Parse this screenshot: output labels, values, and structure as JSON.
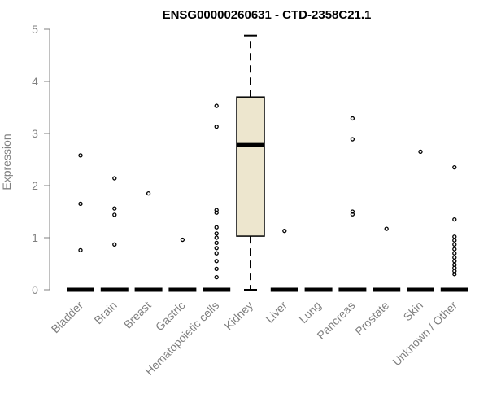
{
  "chart_data": {
    "type": "box",
    "title": "ENSG00000260631 - CTD-2358C21.1",
    "ylabel": "Expression",
    "xlabel": "",
    "ylim": [
      0,
      5
    ],
    "yticks": [
      0,
      1,
      2,
      3,
      4,
      5
    ],
    "grid": false,
    "categories": [
      "Bladder",
      "Brain",
      "Breast",
      "Gastric",
      "Hematopoietic cells",
      "Kidney",
      "Liver",
      "Lung",
      "Pancreas",
      "Prostate",
      "Skin",
      "Unknown / Other"
    ],
    "boxes": [
      {
        "category": "Bladder",
        "min": 0,
        "q1": 0,
        "median": 0,
        "q3": 0,
        "max": 0,
        "outliers": [
          0.76,
          1.65,
          2.58
        ]
      },
      {
        "category": "Brain",
        "min": 0,
        "q1": 0,
        "median": 0,
        "q3": 0,
        "max": 0,
        "outliers": [
          0.87,
          1.44,
          1.56,
          2.14
        ]
      },
      {
        "category": "Breast",
        "min": 0,
        "q1": 0,
        "median": 0,
        "q3": 0,
        "max": 0,
        "outliers": [
          1.85
        ]
      },
      {
        "category": "Gastric",
        "min": 0,
        "q1": 0,
        "median": 0,
        "q3": 0,
        "max": 0,
        "outliers": [
          0.96
        ]
      },
      {
        "category": "Hematopoietic cells",
        "min": 0,
        "q1": 0,
        "median": 0,
        "q3": 0,
        "max": 0,
        "outliers": [
          0.24,
          0.4,
          0.55,
          0.7,
          0.8,
          0.9,
          1.0,
          1.08,
          1.2,
          1.48,
          1.53,
          3.13,
          3.53
        ]
      },
      {
        "category": "Kidney",
        "min": 0,
        "q1": 1.03,
        "median": 2.78,
        "q3": 3.7,
        "max": 4.88,
        "outliers": []
      },
      {
        "category": "Liver",
        "min": 0,
        "q1": 0,
        "median": 0,
        "q3": 0,
        "max": 0,
        "outliers": [
          1.13
        ]
      },
      {
        "category": "Lung",
        "min": 0,
        "q1": 0,
        "median": 0,
        "q3": 0,
        "max": 0,
        "outliers": []
      },
      {
        "category": "Pancreas",
        "min": 0,
        "q1": 0,
        "median": 0,
        "q3": 0,
        "max": 0,
        "outliers": [
          1.45,
          1.5,
          2.89,
          3.29
        ]
      },
      {
        "category": "Prostate",
        "min": 0,
        "q1": 0,
        "median": 0,
        "q3": 0,
        "max": 0,
        "outliers": [
          1.17
        ]
      },
      {
        "category": "Skin",
        "min": 0,
        "q1": 0,
        "median": 0,
        "q3": 0,
        "max": 0,
        "outliers": [
          2.65
        ]
      },
      {
        "category": "Unknown / Other",
        "min": 0,
        "q1": 0,
        "median": 0,
        "q3": 0,
        "max": 0,
        "outliers": [
          0.3,
          0.36,
          0.42,
          0.48,
          0.55,
          0.62,
          0.7,
          0.78,
          0.87,
          0.95,
          1.02,
          1.35,
          2.35
        ]
      }
    ],
    "colors": {
      "box_fill": "#ede6ce",
      "axis": "#808080",
      "ink": "#000000"
    }
  }
}
